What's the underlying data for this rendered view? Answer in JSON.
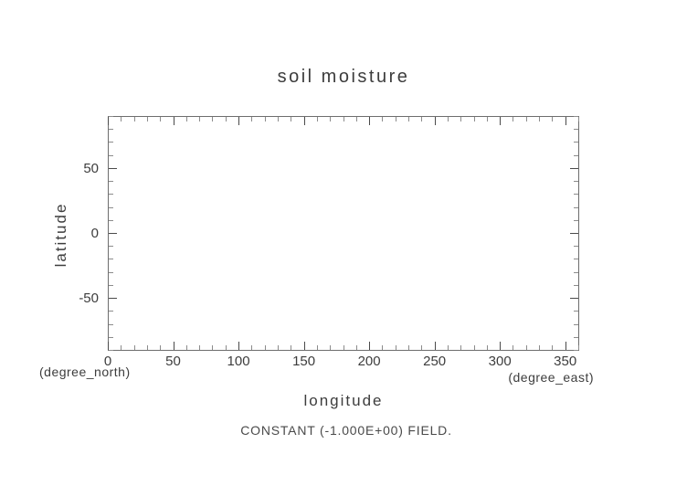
{
  "page": {
    "background_color": "#ffffff"
  },
  "chart_data": {
    "type": "line",
    "title": "soil moisture",
    "xlabel": "longitude",
    "ylabel": "latitude",
    "x_units_label": "(degree_east)",
    "y_units_label": "(degree_north)",
    "xlim": [
      0,
      360
    ],
    "ylim": [
      -90,
      90
    ],
    "x_major_ticks": [
      0,
      50,
      100,
      150,
      200,
      250,
      300,
      350
    ],
    "x_major_tick_labels": [
      "0",
      "50",
      "100",
      "150",
      "200",
      "250",
      "300",
      "350"
    ],
    "y_major_ticks": [
      50,
      0,
      -50
    ],
    "y_major_tick_labels": [
      "50",
      "0",
      "-50"
    ],
    "x_minor_tick_step": 10,
    "y_minor_tick_step": 10,
    "grid": false,
    "legend": null,
    "series": [],
    "annotation": "CONSTANT (-1.000E+00) FIELD.",
    "note": "plot interior is empty because the field is constant",
    "frame_color": "#6e6e6e",
    "major_tick_color": "#4a4a4a",
    "minor_tick_color": "#8c8c8c",
    "text_color": "#3d3d3d"
  }
}
